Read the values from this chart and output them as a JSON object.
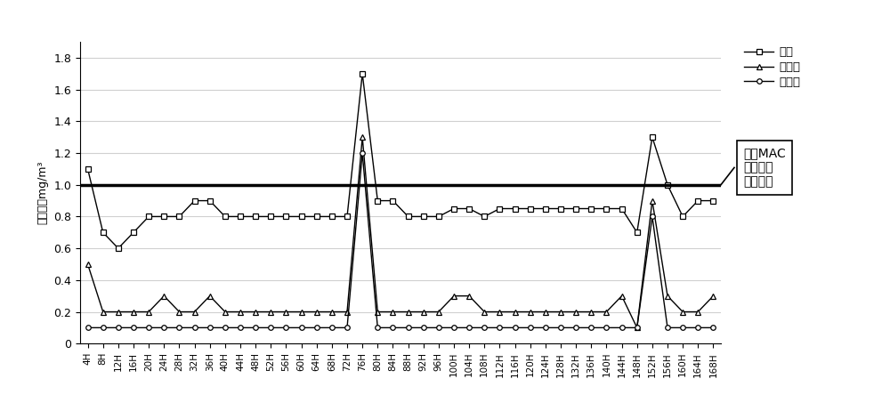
{
  "x_labels": [
    "4H",
    "8H",
    "12H",
    "16H",
    "20H",
    "24H",
    "28H",
    "32H",
    "36H",
    "40H",
    "44H",
    "48H",
    "52H",
    "56H",
    "60H",
    "64H",
    "68H",
    "72H",
    "76H",
    "80H",
    "84H",
    "88H",
    "92H",
    "96H",
    "100H",
    "104H",
    "108H",
    "112H",
    "116H",
    "120H",
    "124H",
    "128H",
    "132H",
    "136H",
    "140H",
    "144H",
    "148H",
    "152H",
    "156H",
    "160H",
    "164H",
    "168H"
  ],
  "duibi": [
    1.1,
    0.7,
    0.6,
    0.7,
    0.8,
    0.8,
    0.8,
    0.9,
    0.9,
    0.8,
    0.8,
    0.8,
    0.8,
    0.8,
    0.8,
    0.8,
    0.8,
    0.8,
    1.7,
    0.9,
    0.9,
    0.8,
    0.8,
    0.8,
    0.85,
    0.85,
    0.8,
    0.85,
    0.85,
    0.85,
    0.85,
    0.85,
    0.85,
    0.85,
    0.85,
    0.85,
    0.7,
    1.3,
    1.0,
    0.8,
    0.9,
    0.9
  ],
  "fangfa1": [
    0.5,
    0.2,
    0.2,
    0.2,
    0.2,
    0.3,
    0.2,
    0.2,
    0.3,
    0.2,
    0.2,
    0.2,
    0.2,
    0.2,
    0.2,
    0.2,
    0.2,
    0.2,
    1.3,
    0.2,
    0.2,
    0.2,
    0.2,
    0.2,
    0.3,
    0.3,
    0.2,
    0.2,
    0.2,
    0.2,
    0.2,
    0.2,
    0.2,
    0.2,
    0.2,
    0.3,
    0.1,
    0.9,
    0.3,
    0.2,
    0.2,
    0.3
  ],
  "fangfa2": [
    0.1,
    0.1,
    0.1,
    0.1,
    0.1,
    0.1,
    0.1,
    0.1,
    0.1,
    0.1,
    0.1,
    0.1,
    0.1,
    0.1,
    0.1,
    0.1,
    0.1,
    0.1,
    1.2,
    0.1,
    0.1,
    0.1,
    0.1,
    0.1,
    0.1,
    0.1,
    0.1,
    0.1,
    0.1,
    0.1,
    0.1,
    0.1,
    0.1,
    0.1,
    0.1,
    0.1,
    0.1,
    0.8,
    0.1,
    0.1,
    0.1,
    0.1
  ],
  "mac_line": 1.0,
  "ylim": [
    0,
    1.9
  ],
  "yticks": [
    0,
    0.2,
    0.4,
    0.6,
    0.8,
    1.0,
    1.2,
    1.4,
    1.6,
    1.8
  ],
  "ylabel": "氯气浓度mg/m³",
  "legend_labels": [
    "对比",
    "方法一",
    "方法二"
  ],
  "mac_label": "中国MAC\n车间空气\n卫生标准",
  "line_color": "#000000",
  "background_color": "#ffffff",
  "grid_color": "#d0d0d0"
}
